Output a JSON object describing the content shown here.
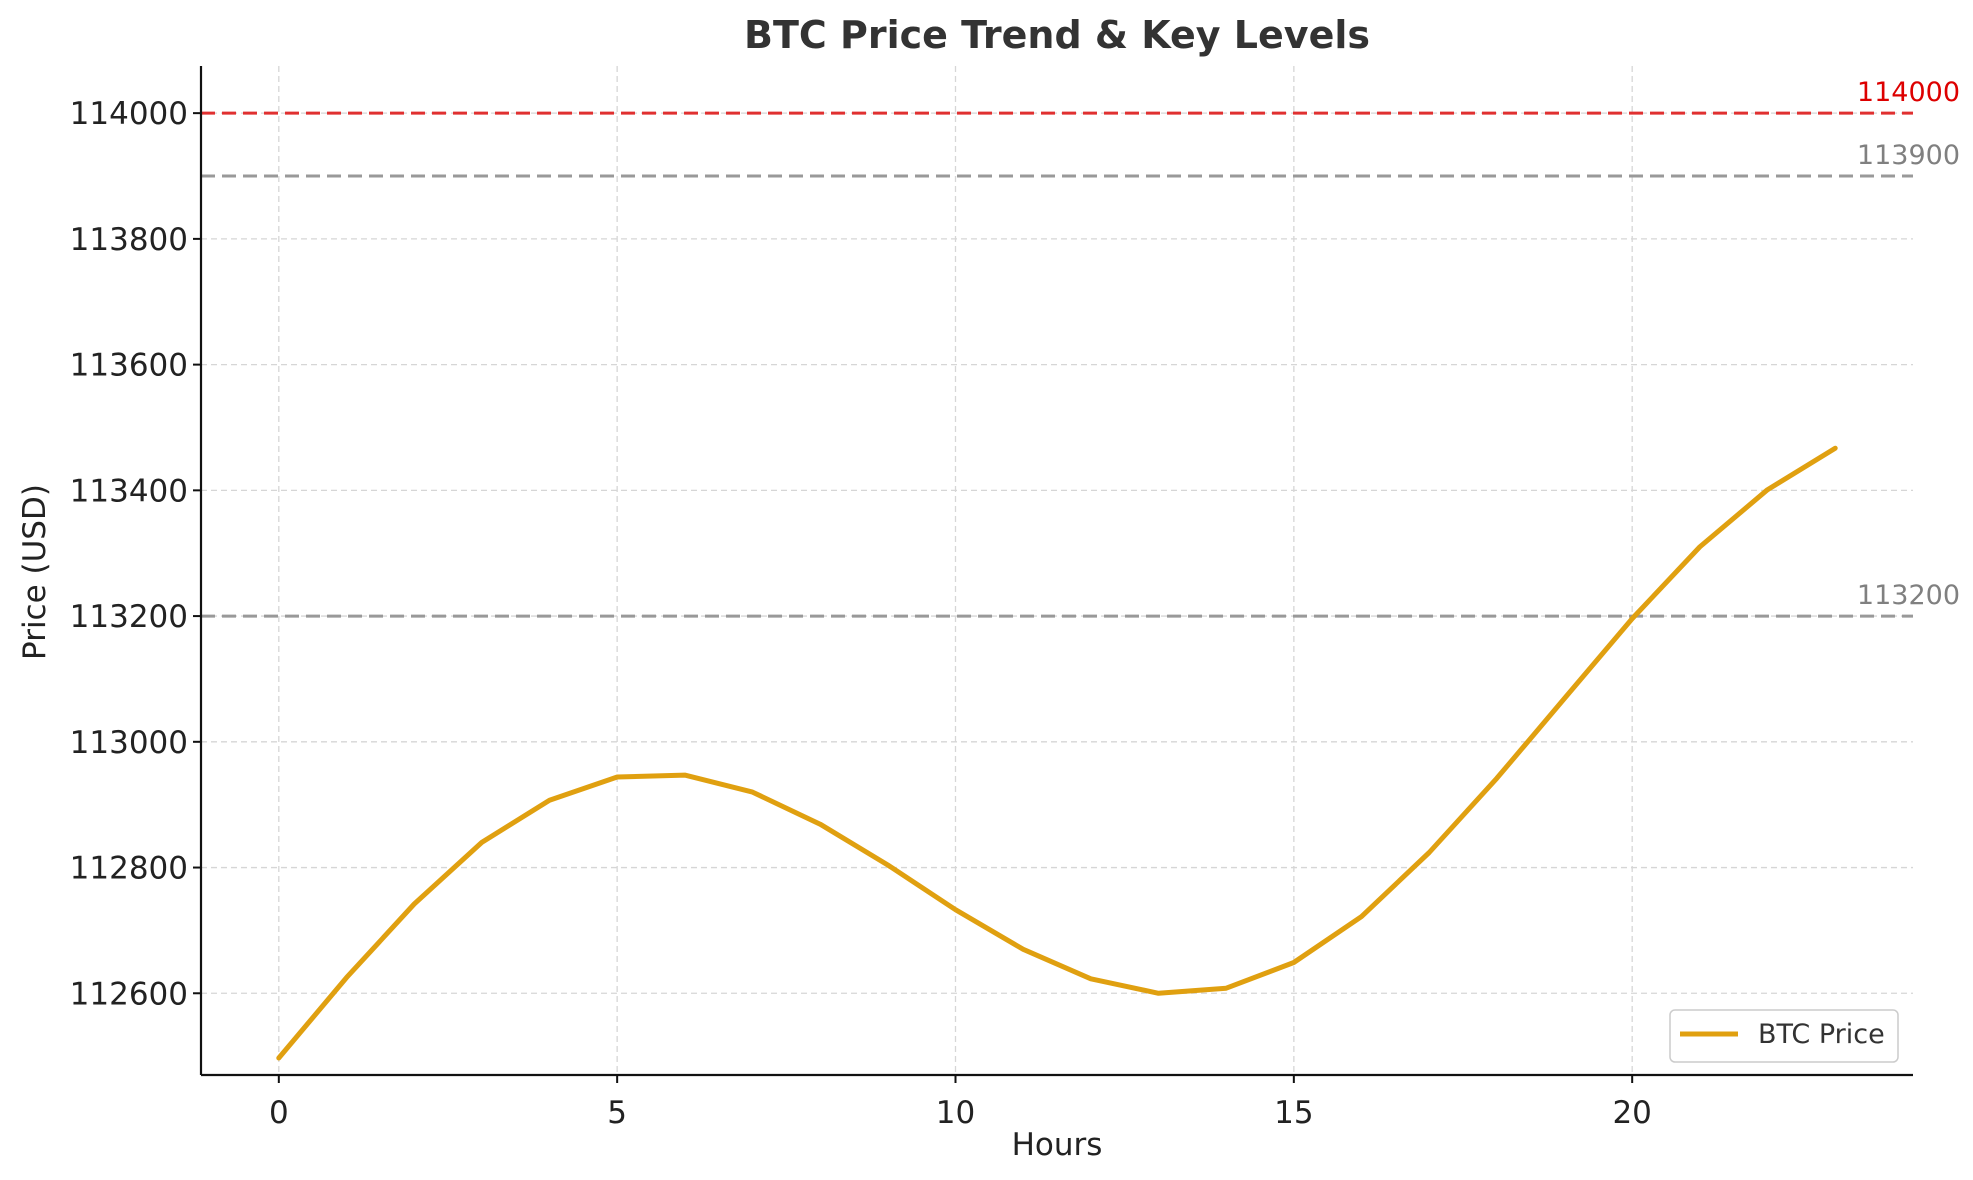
{
  "chart_data": {
    "type": "line",
    "title": "BTC Price Trend & Key Levels",
    "xlabel": "Hours",
    "ylabel": "Price (USD)",
    "xlim": [
      -1.15,
      24.15
    ],
    "ylim": [
      112470,
      114075
    ],
    "x_ticks": [
      0,
      5,
      10,
      15,
      20
    ],
    "y_ticks": [
      112600,
      112800,
      113000,
      113200,
      113400,
      113600,
      113800,
      114000
    ],
    "grid": true,
    "legend_position": "lower-right",
    "series": [
      {
        "name": "BTC Price",
        "color": "#e0a010",
        "x": [
          0,
          1,
          2,
          3,
          4,
          5,
          6,
          7,
          8,
          9,
          10,
          11,
          12,
          13,
          14,
          15,
          16,
          17,
          18,
          19,
          20,
          21,
          22,
          23
        ],
        "values": [
          112497,
          112625,
          112742,
          112840,
          112907,
          112944,
          112947,
          112920,
          112869,
          112804,
          112733,
          112670,
          112623,
          112600,
          112608,
          112649,
          112722,
          112824,
          112942,
          113069,
          113196,
          113310,
          113401,
          113467
        ]
      }
    ],
    "horizontal_lines": [
      {
        "value": 114000,
        "label": "114000",
        "color": "#e03030",
        "label_color": "#dd0000",
        "style": "dashed"
      },
      {
        "value": 113900,
        "label": "113900",
        "color": "#999999",
        "label_color": "#808080",
        "style": "dashed"
      },
      {
        "value": 113200,
        "label": "113200",
        "color": "#999999",
        "label_color": "#808080",
        "style": "dashed"
      }
    ]
  }
}
